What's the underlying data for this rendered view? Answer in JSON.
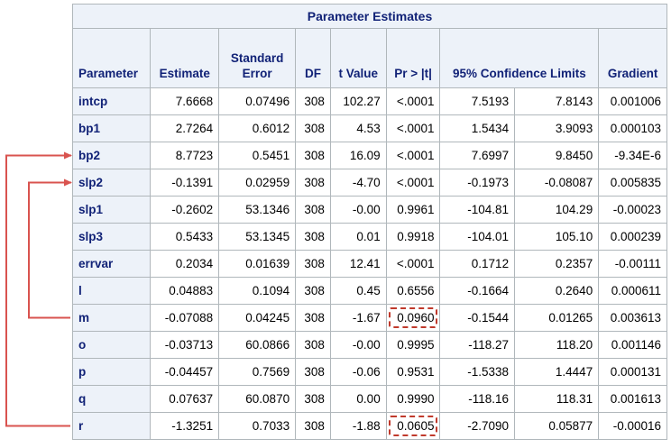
{
  "table": {
    "title": "Parameter Estimates",
    "columns": [
      {
        "key": "parameter",
        "label": "Parameter"
      },
      {
        "key": "estimate",
        "label": "Estimate"
      },
      {
        "key": "std_error",
        "label": "Standard Error"
      },
      {
        "key": "df",
        "label": "DF"
      },
      {
        "key": "t_value",
        "label": "t Value"
      },
      {
        "key": "p_value",
        "label": "Pr > |t|"
      },
      {
        "key": "confidence_limits",
        "label": "95% Confidence Limits"
      },
      {
        "key": "gradient",
        "label": "Gradient"
      }
    ],
    "rows": [
      {
        "parameter": "intcp",
        "estimate": "7.6668",
        "std_error": "0.07496",
        "df": "308",
        "t_value": "102.27",
        "p_value": "<.0001",
        "lower": "7.5193",
        "upper": "7.8143",
        "gradient": "0.001006"
      },
      {
        "parameter": "bp1",
        "estimate": "2.7264",
        "std_error": "0.6012",
        "df": "308",
        "t_value": "4.53",
        "p_value": "<.0001",
        "lower": "1.5434",
        "upper": "3.9093",
        "gradient": "0.000103"
      },
      {
        "parameter": "bp2",
        "estimate": "8.7723",
        "std_error": "0.5451",
        "df": "308",
        "t_value": "16.09",
        "p_value": "<.0001",
        "lower": "7.6997",
        "upper": "9.8450",
        "gradient": "-9.34E-6"
      },
      {
        "parameter": "slp2",
        "estimate": "-0.1391",
        "std_error": "0.02959",
        "df": "308",
        "t_value": "-4.70",
        "p_value": "<.0001",
        "lower": "-0.1973",
        "upper": "-0.08087",
        "gradient": "0.005835"
      },
      {
        "parameter": "slp1",
        "estimate": "-0.2602",
        "std_error": "53.1346",
        "df": "308",
        "t_value": "-0.00",
        "p_value": "0.9961",
        "lower": "-104.81",
        "upper": "104.29",
        "gradient": "-0.00023"
      },
      {
        "parameter": "slp3",
        "estimate": "0.5433",
        "std_error": "53.1345",
        "df": "308",
        "t_value": "0.01",
        "p_value": "0.9918",
        "lower": "-104.01",
        "upper": "105.10",
        "gradient": "0.000239"
      },
      {
        "parameter": "errvar",
        "estimate": "0.2034",
        "std_error": "0.01639",
        "df": "308",
        "t_value": "12.41",
        "p_value": "<.0001",
        "lower": "0.1712",
        "upper": "0.2357",
        "gradient": "-0.00111"
      },
      {
        "parameter": "l",
        "estimate": "0.04883",
        "std_error": "0.1094",
        "df": "308",
        "t_value": "0.45",
        "p_value": "0.6556",
        "lower": "-0.1664",
        "upper": "0.2640",
        "gradient": "0.000611"
      },
      {
        "parameter": "m",
        "estimate": "-0.07088",
        "std_error": "0.04245",
        "df": "308",
        "t_value": "-1.67",
        "p_value": "0.0960",
        "lower": "-0.1544",
        "upper": "0.01265",
        "gradient": "0.003613",
        "highlight_p": true
      },
      {
        "parameter": "o",
        "estimate": "-0.03713",
        "std_error": "60.0866",
        "df": "308",
        "t_value": "-0.00",
        "p_value": "0.9995",
        "lower": "-118.27",
        "upper": "118.20",
        "gradient": "0.001146"
      },
      {
        "parameter": "p",
        "estimate": "-0.04457",
        "std_error": "0.7569",
        "df": "308",
        "t_value": "-0.06",
        "p_value": "0.9531",
        "lower": "-1.5338",
        "upper": "1.4447",
        "gradient": "0.000131"
      },
      {
        "parameter": "q",
        "estimate": "0.07637",
        "std_error": "60.0870",
        "df": "308",
        "t_value": "0.00",
        "p_value": "0.9990",
        "lower": "-118.16",
        "upper": "118.31",
        "gradient": "0.001613"
      },
      {
        "parameter": "r",
        "estimate": "-1.3251",
        "std_error": "0.7033",
        "df": "308",
        "t_value": "-1.88",
        "p_value": "0.0605",
        "lower": "-2.7090",
        "upper": "0.05877",
        "gradient": "-0.00016",
        "highlight_p": true
      }
    ]
  },
  "annotations": {
    "color": "#d9534f",
    "arrows": [
      {
        "from_row": "r",
        "to_row": "bp2"
      },
      {
        "from_row": "m",
        "to_row": "slp2"
      }
    ]
  }
}
